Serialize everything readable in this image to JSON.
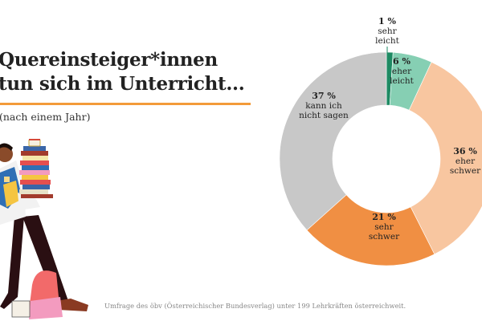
{
  "header": {
    "title_line1": "Quereinsteiger*innen",
    "title_line2": "tun sich im Unterricht...",
    "subtitle": "(nach einem Jahr)"
  },
  "footer": {
    "source": "Umfrage des öbv (Österreichischer Bundesverlag) unter 199 Lehrkräften österreichweit."
  },
  "colors": {
    "accent_rule": "#f39b3a",
    "sehr_leicht": "#1e8a63",
    "eher_leicht": "#86cfb3",
    "eher_schwer": "#f8c6a0",
    "sehr_schwer": "#f08f43",
    "kann_nicht_sagen": "#c8c8c8"
  },
  "chart_data": {
    "type": "pie",
    "variant": "donut",
    "title": "Quereinsteiger*innen tun sich im Unterricht... (nach einem Jahr)",
    "start": "top",
    "direction": "clockwise",
    "slices": [
      {
        "pct_label": "1 %",
        "label_lines": [
          "sehr",
          "leicht"
        ],
        "value": 1,
        "color": "#1e8a63"
      },
      {
        "pct_label": "6 %",
        "label_lines": [
          "eher",
          "leicht"
        ],
        "value": 6,
        "color": "#86cfb3"
      },
      {
        "pct_label": "36 %",
        "label_lines": [
          "eher",
          "schwer"
        ],
        "value": 36,
        "color": "#f8c6a0"
      },
      {
        "pct_label": "21 %",
        "label_lines": [
          "sehr",
          "schwer"
        ],
        "value": 21,
        "color": "#f08f43"
      },
      {
        "pct_label": "37 %",
        "label_lines": [
          "kann ich",
          "nicht sagen"
        ],
        "value": 37,
        "color": "#c8c8c8"
      }
    ]
  }
}
